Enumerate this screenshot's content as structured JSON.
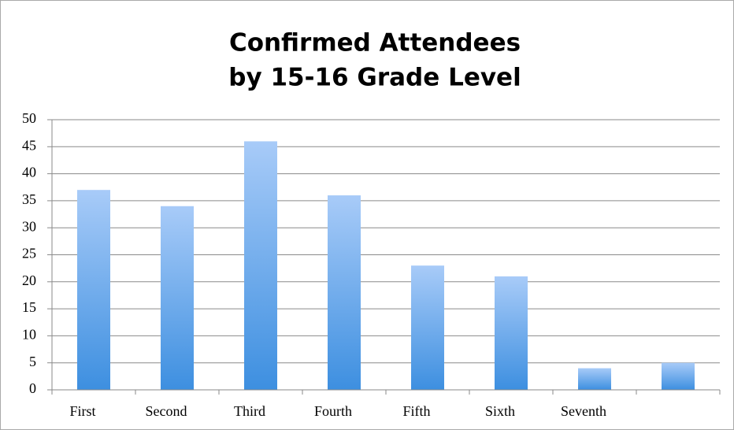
{
  "chart_data": {
    "type": "bar",
    "title": [
      "Confirmed Attendees",
      "by  15-16 Grade Level"
    ],
    "categories": [
      "First",
      "Second",
      "Third",
      "Fourth",
      "Fifth",
      "Sixth",
      "Seventh",
      null
    ],
    "values": [
      37,
      34,
      46,
      36,
      23,
      21,
      4,
      5
    ],
    "color": "#3d8fe0",
    "ylim": [
      0,
      50
    ],
    "yticks": [
      0,
      5,
      10,
      15,
      20,
      25,
      30,
      35,
      40,
      45,
      50
    ],
    "grid": true
  }
}
